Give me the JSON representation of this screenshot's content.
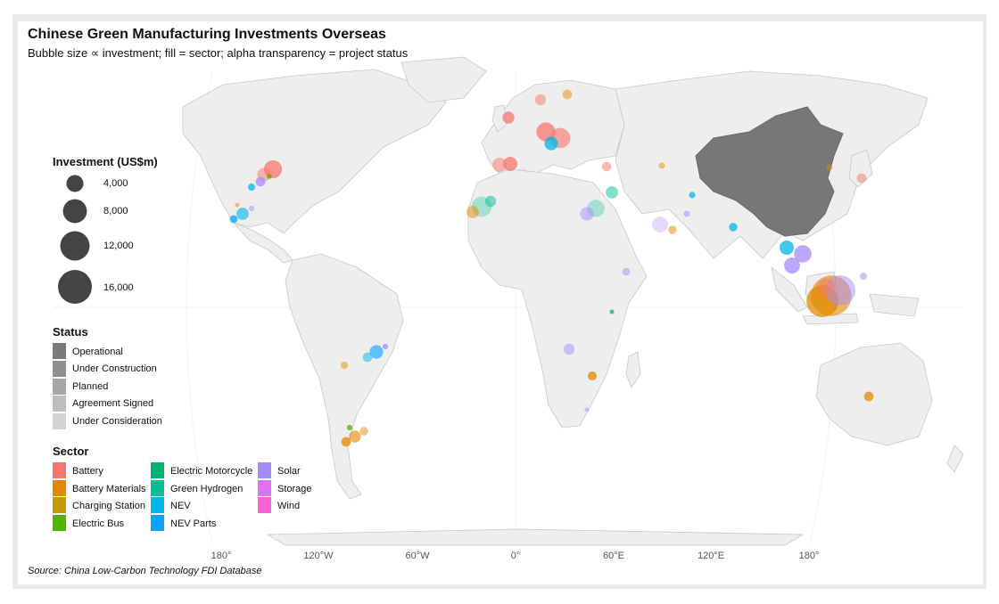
{
  "title": "Chinese Green Manufacturing Investments Overseas",
  "subtitle": "Bubble size ∝ investment; fill = sector; alpha transparency = project status",
  "source": "Source: China Low-Carbon Technology FDI Database",
  "legend": {
    "investment_title": "Investment (US$m)",
    "investment_sizes": [
      {
        "label": "4,000",
        "value": 4000
      },
      {
        "label": "8,000",
        "value": 8000
      },
      {
        "label": "12,000",
        "value": 12000
      },
      {
        "label": "16,000",
        "value": 16000
      }
    ],
    "status_title": "Status",
    "statuses": [
      {
        "label": "Operational",
        "color": "#7a7a7a"
      },
      {
        "label": "Under Construction",
        "color": "#8f8f8f"
      },
      {
        "label": "Planned",
        "color": "#a6a6a6"
      },
      {
        "label": "Agreement Signed",
        "color": "#bdbdbd"
      },
      {
        "label": "Under Consideration",
        "color": "#d4d4d4"
      }
    ],
    "sector_title": "Sector",
    "sectors": [
      {
        "label": "Battery",
        "color": "#f8766d"
      },
      {
        "label": "Battery Materials",
        "color": "#e38900"
      },
      {
        "label": "Charging Station",
        "color": "#c49a00"
      },
      {
        "label": "Electric Bus",
        "color": "#53b400"
      },
      {
        "label": "Electric Motorcycle",
        "color": "#00b06f"
      },
      {
        "label": "Green Hydrogen",
        "color": "#00c094"
      },
      {
        "label": "NEV",
        "color": "#00b6eb"
      },
      {
        "label": "NEV Parts",
        "color": "#06a4ff"
      },
      {
        "label": "Solar",
        "color": "#a58aff"
      },
      {
        "label": "Storage",
        "color": "#df70f8"
      },
      {
        "label": "Wind",
        "color": "#fb61d7"
      }
    ]
  },
  "axis": {
    "x_ticks": [
      "180°",
      "120°W",
      "60°W",
      "0°",
      "60°E",
      "120°E",
      "180°"
    ],
    "x_values": [
      -180,
      -120,
      -60,
      0,
      60,
      120,
      180
    ]
  },
  "map": {
    "highlighted_country": "China",
    "highlight_color": "#777777",
    "land_color": "#eeeeee",
    "border_color": "#c8c8c8"
  },
  "projects": [
    {
      "region": "US Midwest",
      "sector": "Battery",
      "size": 3200,
      "status": "Operational"
    },
    {
      "region": "US Midwest",
      "sector": "Battery",
      "size": 1800,
      "status": "Planned"
    },
    {
      "region": "US South",
      "sector": "Solar",
      "size": 900,
      "status": "Operational"
    },
    {
      "region": "US South",
      "sector": "NEV",
      "size": 500,
      "status": "Operational"
    },
    {
      "region": "US South",
      "sector": "Electric Bus",
      "size": 250,
      "status": "Operational"
    },
    {
      "region": "Mexico",
      "sector": "NEV",
      "size": 1500,
      "status": "Under Construction"
    },
    {
      "region": "Mexico",
      "sector": "NEV Parts",
      "size": 600,
      "status": "Operational"
    },
    {
      "region": "Mexico",
      "sector": "Solar",
      "size": 300,
      "status": "Planned"
    },
    {
      "region": "Mexico",
      "sector": "Battery Materials",
      "size": 200,
      "status": "Planned"
    },
    {
      "region": "Brazil",
      "sector": "NEV Parts",
      "size": 1800,
      "status": "Under Construction"
    },
    {
      "region": "Brazil",
      "sector": "NEV",
      "size": 900,
      "status": "Planned"
    },
    {
      "region": "Brazil",
      "sector": "Solar",
      "size": 300,
      "status": "Operational"
    },
    {
      "region": "Bolivia",
      "sector": "Battery Materials",
      "size": 500,
      "status": "Planned"
    },
    {
      "region": "Argentina",
      "sector": "Battery Materials",
      "size": 1400,
      "status": "Under Construction"
    },
    {
      "region": "Argentina",
      "sector": "Battery Materials",
      "size": 900,
      "status": "Operational"
    },
    {
      "region": "Argentina",
      "sector": "Battery Materials",
      "size": 700,
      "status": "Planned"
    },
    {
      "region": "Argentina",
      "sector": "Electric Bus",
      "size": 300,
      "status": "Operational"
    },
    {
      "region": "Finland",
      "sector": "Battery Materials",
      "size": 900,
      "status": "Planned"
    },
    {
      "region": "Norway",
      "sector": "Battery",
      "size": 1200,
      "status": "Planned"
    },
    {
      "region": "UK",
      "sector": "Battery",
      "size": 1400,
      "status": "Operational"
    },
    {
      "region": "Germany",
      "sector": "Battery",
      "size": 3500,
      "status": "Operational"
    },
    {
      "region": "Hungary",
      "sector": "Battery",
      "size": 4000,
      "status": "Under Construction"
    },
    {
      "region": "Hungary",
      "sector": "NEV",
      "size": 1800,
      "status": "Operational"
    },
    {
      "region": "Portugal",
      "sector": "Battery",
      "size": 2000,
      "status": "Planned"
    },
    {
      "region": "Spain",
      "sector": "Battery",
      "size": 2000,
      "status": "Operational"
    },
    {
      "region": "Turkey",
      "sector": "Battery",
      "size": 900,
      "status": "Planned"
    },
    {
      "region": "Morocco",
      "sector": "Green Hydrogen",
      "size": 4000,
      "status": "Under Consideration"
    },
    {
      "region": "Morocco",
      "sector": "Battery Materials",
      "size": 1500,
      "status": "Planned"
    },
    {
      "region": "Morocco",
      "sector": "Green Hydrogen",
      "size": 1200,
      "status": "Planned"
    },
    {
      "region": "Egypt",
      "sector": "Green Hydrogen",
      "size": 3000,
      "status": "Under Consideration"
    },
    {
      "region": "Egypt",
      "sector": "Solar",
      "size": 1800,
      "status": "Planned"
    },
    {
      "region": "Saudi Arabia",
      "sector": "Green Hydrogen",
      "size": 1500,
      "status": "Planned"
    },
    {
      "region": "UAE",
      "sector": "Solar",
      "size": 2500,
      "status": "Under Consideration"
    },
    {
      "region": "Oman",
      "sector": "Battery Materials",
      "size": 700,
      "status": "Planned"
    },
    {
      "region": "Kazakhstan",
      "sector": "Battery Materials",
      "size": 400,
      "status": "Planned"
    },
    {
      "region": "Uzbekistan",
      "sector": "NEV",
      "size": 400,
      "status": "Operational"
    },
    {
      "region": "Pakistan",
      "sector": "Solar",
      "size": 400,
      "status": "Planned"
    },
    {
      "region": "India",
      "sector": "NEV",
      "size": 700,
      "status": "Operational"
    },
    {
      "region": "Thailand",
      "sector": "NEV",
      "size": 2000,
      "status": "Operational"
    },
    {
      "region": "Vietnam",
      "sector": "Solar",
      "size": 3000,
      "status": "Operational"
    },
    {
      "region": "Malaysia",
      "sector": "Solar",
      "size": 2500,
      "status": "Operational"
    },
    {
      "region": "Indonesia",
      "sector": "Battery Materials",
      "size": 16000,
      "status": "Under Construction"
    },
    {
      "region": "Indonesia",
      "sector": "Battery Materials",
      "size": 10000,
      "status": "Operational"
    },
    {
      "region": "Indonesia",
      "sector": "Solar",
      "size": 9000,
      "status": "Planned"
    },
    {
      "region": "Indonesia",
      "sector": "Battery",
      "size": 3000,
      "status": "Planned"
    },
    {
      "region": "Philippines",
      "sector": "Solar",
      "size": 500,
      "status": "Planned"
    },
    {
      "region": "Korea",
      "sector": "Battery",
      "size": 900,
      "status": "Planned"
    },
    {
      "region": "Japan",
      "sector": "Battery Materials",
      "size": 400,
      "status": "Planned"
    },
    {
      "region": "Ethiopia",
      "sector": "Solar",
      "size": 600,
      "status": "Planned"
    },
    {
      "region": "Kenya",
      "sector": "Electric Motorcycle",
      "size": 200,
      "status": "Operational"
    },
    {
      "region": "Angola",
      "sector": "Solar",
      "size": 1200,
      "status": "Planned"
    },
    {
      "region": "Zimbabwe",
      "sector": "Battery Materials",
      "size": 800,
      "status": "Operational"
    },
    {
      "region": "South Africa",
      "sector": "Solar",
      "size": 200,
      "status": "Planned"
    },
    {
      "region": "Australia",
      "sector": "Battery Materials",
      "size": 900,
      "status": "Operational"
    }
  ]
}
